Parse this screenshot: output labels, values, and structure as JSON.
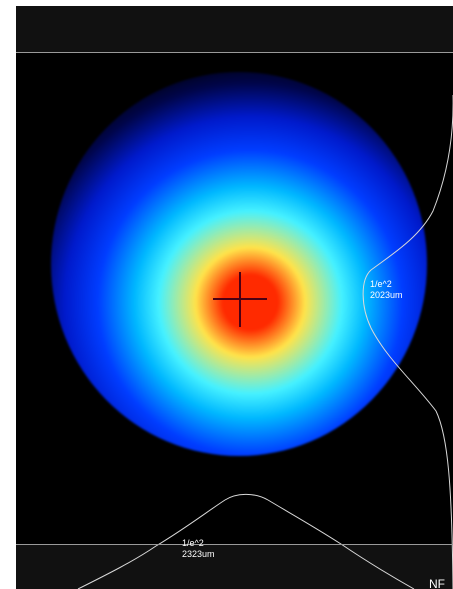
{
  "beam_profiler": {
    "colors": {
      "background": "#000000",
      "peak": "#ff2a00",
      "mid": "#ffe34a",
      "cyan": "#46f1ff",
      "blue": "#003dff",
      "edge": "#00054a",
      "profile_line": "#d8d8d8",
      "guide_line": "#9a9a9a",
      "crosshair": "#4c0014"
    },
    "right_profile": {
      "label_line_1": "1/e^2",
      "label_line_2": "2023um"
    },
    "bottom_profile": {
      "label_line_1": "1/e^2",
      "label_line_2": "2323um"
    },
    "corner_text": "NF"
  }
}
